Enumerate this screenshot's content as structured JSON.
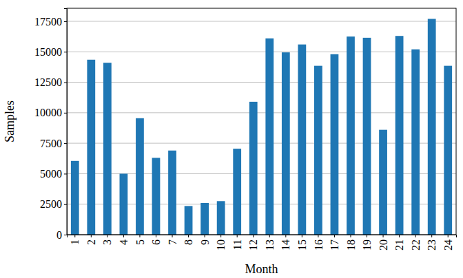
{
  "chart_data": {
    "type": "bar",
    "x_label": "Month",
    "y_label": "Samples",
    "categories": [
      "1",
      "2",
      "3",
      "4",
      "5",
      "6",
      "7",
      "8",
      "9",
      "10",
      "11",
      "12",
      "13",
      "14",
      "15",
      "16",
      "17",
      "18",
      "19",
      "20",
      "21",
      "22",
      "23",
      "24"
    ],
    "values": [
      6050,
      14350,
      14100,
      5000,
      9550,
      6300,
      6900,
      2350,
      2600,
      2750,
      7050,
      10900,
      16100,
      14950,
      15600,
      13850,
      14800,
      16250,
      16150,
      8600,
      16300,
      15200,
      17700,
      13850
    ],
    "color": "#1f77b4",
    "ylim": [
      0,
      18570
    ],
    "yticks": [
      0,
      2500,
      5000,
      7500,
      10000,
      12500,
      15000,
      17500
    ],
    "grid": true
  }
}
